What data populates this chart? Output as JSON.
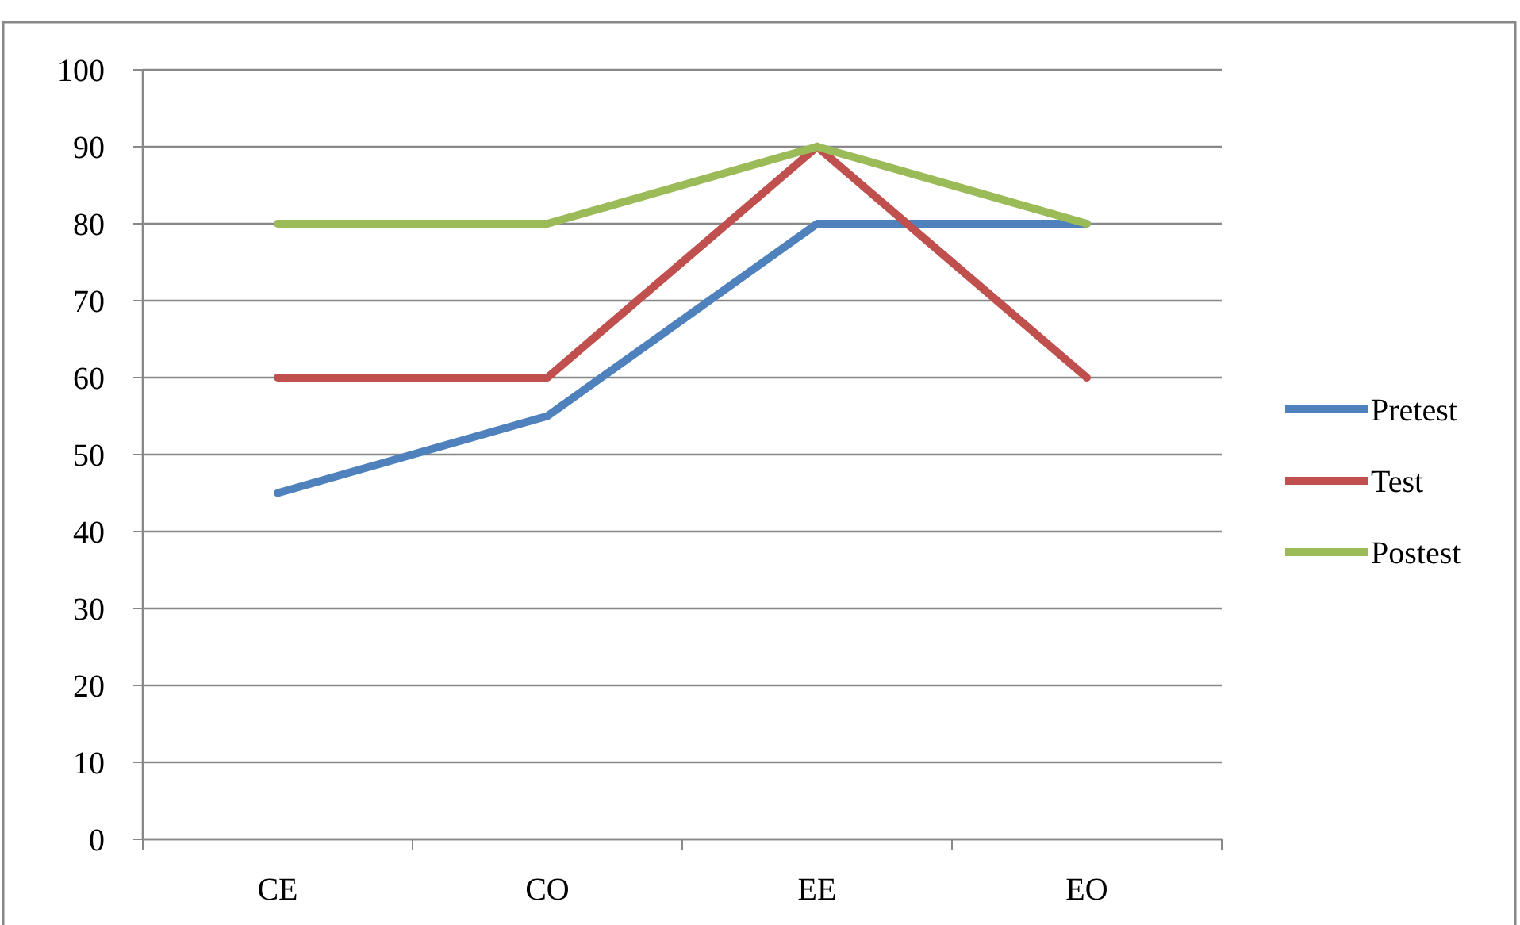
{
  "chart_data": {
    "type": "line",
    "categories": [
      "CE",
      "CO",
      "EE",
      "EO"
    ],
    "series": [
      {
        "name": "Pretest",
        "color": "#4f81bd",
        "values": [
          45,
          55,
          80,
          80
        ]
      },
      {
        "name": "Test",
        "color": "#c0504d",
        "values": [
          60,
          60,
          90,
          60
        ]
      },
      {
        "name": "Postest",
        "color": "#9bbb59",
        "values": [
          80,
          80,
          90,
          80
        ]
      }
    ],
    "ylim": [
      0,
      100
    ],
    "yticks": [
      0,
      10,
      20,
      30,
      40,
      50,
      60,
      70,
      80,
      90,
      100
    ],
    "grid": "y",
    "legend": "right",
    "marker": "none",
    "line_style": "solid"
  }
}
